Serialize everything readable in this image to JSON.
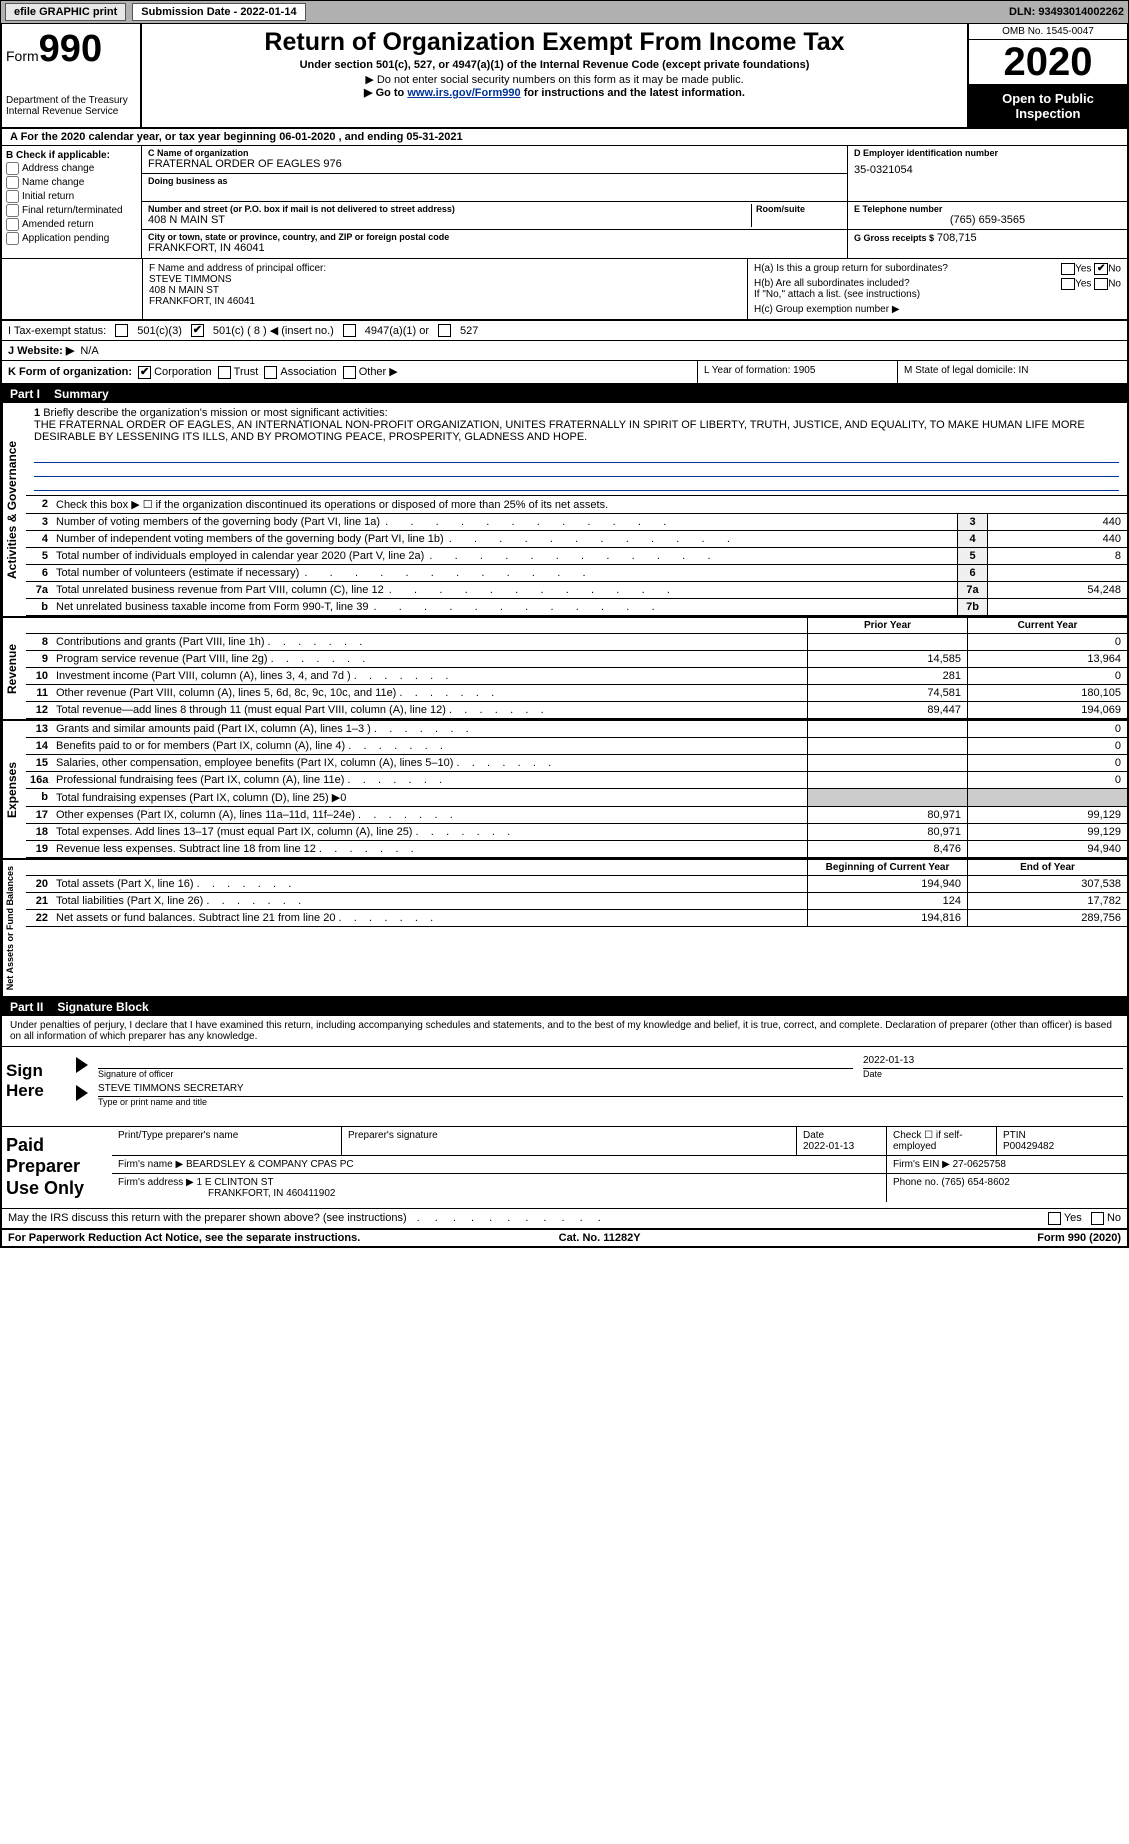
{
  "topbar": {
    "efile": "efile GRAPHIC print",
    "submission_label": "Submission Date - 2022-01-14",
    "dln": "DLN: 93493014002262"
  },
  "header": {
    "form_label": "Form",
    "form_no": "990",
    "dept1": "Department of the Treasury",
    "dept2": "Internal Revenue Service",
    "title": "Return of Organization Exempt From Income Tax",
    "subtitle": "Under section 501(c), 527, or 4947(a)(1) of the Internal Revenue Code (except private foundations)",
    "note1": "▶ Do not enter social security numbers on this form as it may be made public.",
    "note2_pre": "▶ Go to ",
    "note2_link": "www.irs.gov/Form990",
    "note2_post": " for instructions and the latest information.",
    "omb": "OMB No. 1545-0047",
    "year": "2020",
    "open": "Open to Public Inspection"
  },
  "period": "A For the 2020 calendar year, or tax year beginning 06-01-2020   , and ending 05-31-2021",
  "boxB": {
    "title": "B Check if applicable:",
    "opts": [
      "Address change",
      "Name change",
      "Initial return",
      "Final return/terminated",
      "Amended return",
      "Application pending"
    ]
  },
  "boxC": {
    "name_label": "C Name of organization",
    "name": "FRATERNAL ORDER OF EAGLES 976",
    "dba_label": "Doing business as",
    "dba": "",
    "addr_label": "Number and street (or P.O. box if mail is not delivered to street address)",
    "room_label": "Room/suite",
    "addr": "408 N MAIN ST",
    "city_label": "City or town, state or province, country, and ZIP or foreign postal code",
    "city": "FRANKFORT, IN  46041"
  },
  "boxD": {
    "label": "D Employer identification number",
    "val": "35-0321054"
  },
  "boxE": {
    "label": "E Telephone number",
    "val": "(765) 659-3565"
  },
  "boxG": {
    "label": "G Gross receipts $",
    "val": "708,715"
  },
  "boxF": {
    "label": "F  Name and address of principal officer:",
    "name": "STEVE TIMMONS",
    "addr1": "408 N MAIN ST",
    "addr2": "FRANKFORT, IN  46041"
  },
  "boxH": {
    "a": "H(a)  Is this a group return for subordinates?",
    "b": "H(b)  Are all subordinates included?",
    "b_note": "If \"No,\" attach a list. (see instructions)",
    "c": "H(c)  Group exemption number ▶",
    "yes": "Yes",
    "no": "No"
  },
  "taxI": {
    "label": "I  Tax-exempt status:",
    "o1": "501(c)(3)",
    "o2": "501(c) ( 8 ) ◀ (insert no.)",
    "o3": "4947(a)(1) or",
    "o4": "527"
  },
  "lineJ": {
    "label": "J  Website: ▶",
    "val": "N/A"
  },
  "lineK": {
    "label": "K Form of organization:",
    "opts": [
      "Corporation",
      "Trust",
      "Association",
      "Other ▶"
    ],
    "L": "L Year of formation: 1905",
    "M": "M State of legal domicile: IN"
  },
  "part1": {
    "label": "Part I",
    "title": "Summary"
  },
  "mission": {
    "num": "1",
    "lead": "Briefly describe the organization's mission or most significant activities:",
    "text": "THE FRATERNAL ORDER OF EAGLES, AN INTERNATIONAL NON-PROFIT ORGANIZATION, UNITES FRATERNALLY IN SPIRIT OF LIBERTY, TRUTH, JUSTICE, AND EQUALITY, TO MAKE HUMAN LIFE MORE DESIRABLE BY LESSENING ITS ILLS, AND BY PROMOTING PEACE, PROSPERITY, GLADNESS AND HOPE."
  },
  "govlines": [
    {
      "n": "2",
      "t": "Check this box ▶ ☐ if the organization discontinued its operations or disposed of more than 25% of its net assets.",
      "bx": "",
      "v": ""
    },
    {
      "n": "3",
      "t": "Number of voting members of the governing body (Part VI, line 1a)",
      "bx": "3",
      "v": "440"
    },
    {
      "n": "4",
      "t": "Number of independent voting members of the governing body (Part VI, line 1b)",
      "bx": "4",
      "v": "440"
    },
    {
      "n": "5",
      "t": "Total number of individuals employed in calendar year 2020 (Part V, line 2a)",
      "bx": "5",
      "v": "8"
    },
    {
      "n": "6",
      "t": "Total number of volunteers (estimate if necessary)",
      "bx": "6",
      "v": ""
    },
    {
      "n": "7a",
      "t": "Total unrelated business revenue from Part VIII, column (C), line 12",
      "bx": "7a",
      "v": "54,248"
    },
    {
      "n": "b",
      "t": "Net unrelated business taxable income from Form 990-T, line 39",
      "bx": "7b",
      "v": ""
    }
  ],
  "colheads": {
    "prior": "Prior Year",
    "current": "Current Year"
  },
  "revenue": [
    {
      "n": "8",
      "t": "Contributions and grants (Part VIII, line 1h)",
      "c1": "",
      "c2": "0"
    },
    {
      "n": "9",
      "t": "Program service revenue (Part VIII, line 2g)",
      "c1": "14,585",
      "c2": "13,964"
    },
    {
      "n": "10",
      "t": "Investment income (Part VIII, column (A), lines 3, 4, and 7d )",
      "c1": "281",
      "c2": "0"
    },
    {
      "n": "11",
      "t": "Other revenue (Part VIII, column (A), lines 5, 6d, 8c, 9c, 10c, and 11e)",
      "c1": "74,581",
      "c2": "180,105"
    },
    {
      "n": "12",
      "t": "Total revenue—add lines 8 through 11 (must equal Part VIII, column (A), line 12)",
      "c1": "89,447",
      "c2": "194,069"
    }
  ],
  "expenses": [
    {
      "n": "13",
      "t": "Grants and similar amounts paid (Part IX, column (A), lines 1–3 )",
      "c1": "",
      "c2": "0"
    },
    {
      "n": "14",
      "t": "Benefits paid to or for members (Part IX, column (A), line 4)",
      "c1": "",
      "c2": "0"
    },
    {
      "n": "15",
      "t": "Salaries, other compensation, employee benefits (Part IX, column (A), lines 5–10)",
      "c1": "",
      "c2": "0"
    },
    {
      "n": "16a",
      "t": "Professional fundraising fees (Part IX, column (A), line 11e)",
      "c1": "",
      "c2": "0"
    },
    {
      "n": "b",
      "t": "Total fundraising expenses (Part IX, column (D), line 25) ▶0",
      "c1": "",
      "c2": "",
      "noval": true
    },
    {
      "n": "17",
      "t": "Other expenses (Part IX, column (A), lines 11a–11d, 11f–24e)",
      "c1": "80,971",
      "c2": "99,129"
    },
    {
      "n": "18",
      "t": "Total expenses. Add lines 13–17 (must equal Part IX, column (A), line 25)",
      "c1": "80,971",
      "c2": "99,129"
    },
    {
      "n": "19",
      "t": "Revenue less expenses. Subtract line 18 from line 12",
      "c1": "8,476",
      "c2": "94,940"
    }
  ],
  "netheads": {
    "begin": "Beginning of Current Year",
    "end": "End of Year"
  },
  "netassets": [
    {
      "n": "20",
      "t": "Total assets (Part X, line 16)",
      "c1": "194,940",
      "c2": "307,538"
    },
    {
      "n": "21",
      "t": "Total liabilities (Part X, line 26)",
      "c1": "124",
      "c2": "17,782"
    },
    {
      "n": "22",
      "t": "Net assets or fund balances. Subtract line 21 from line 20",
      "c1": "194,816",
      "c2": "289,756"
    }
  ],
  "vtabs": {
    "gov": "Activities & Governance",
    "rev": "Revenue",
    "exp": "Expenses",
    "net": "Net Assets or Fund Balances"
  },
  "part2": {
    "label": "Part II",
    "title": "Signature Block"
  },
  "penalty": "Under penalties of perjury, I declare that I have examined this return, including accompanying schedules and statements, and to the best of my knowledge and belief, it is true, correct, and complete. Declaration of preparer (other than officer) is based on all information of which preparer has any knowledge.",
  "sign": {
    "here": "Sign Here",
    "sig_of_officer": "Signature of officer",
    "date_lbl": "Date",
    "date": "2022-01-13",
    "name": "STEVE TIMMONS  SECRETARY",
    "type_lbl": "Type or print name and title"
  },
  "preparer": {
    "lbl": "Paid Preparer Use Only",
    "print_lbl": "Print/Type preparer's name",
    "sig_lbl": "Preparer's signature",
    "date_lbl": "Date",
    "date": "2022-01-13",
    "check_lbl": "Check ☐ if self-employed",
    "ptin_lbl": "PTIN",
    "ptin": "P00429482",
    "firm_name_lbl": "Firm's name    ▶",
    "firm_name": "BEARDSLEY & COMPANY CPAS PC",
    "firm_ein_lbl": "Firm's EIN ▶",
    "firm_ein": "27-0625758",
    "firm_addr_lbl": "Firm's address ▶",
    "firm_addr1": "1 E CLINTON ST",
    "firm_addr2": "FRANKFORT, IN  460411902",
    "phone_lbl": "Phone no.",
    "phone": "(765) 654-8602"
  },
  "discuss": {
    "text": "May the IRS discuss this return with the preparer shown above? (see instructions)",
    "yes": "Yes",
    "no": "No"
  },
  "footer": {
    "left": "For Paperwork Reduction Act Notice, see the separate instructions.",
    "mid": "Cat. No. 11282Y",
    "right": "Form 990 (2020)"
  }
}
